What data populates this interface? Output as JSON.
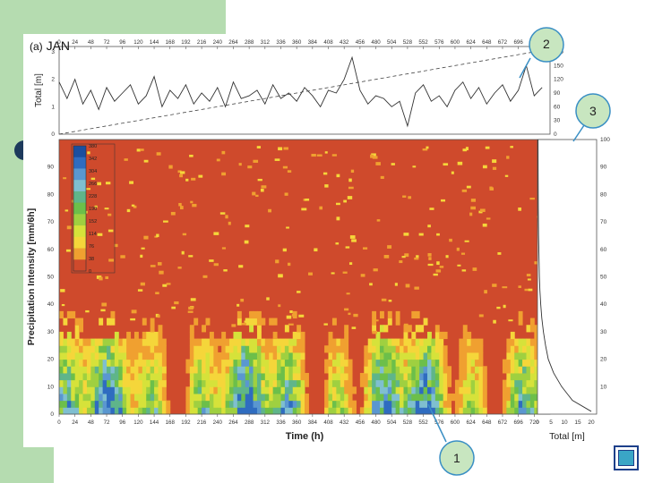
{
  "panel": {
    "label_letter": "(a)",
    "month": "JAN"
  },
  "callouts": [
    {
      "id": "1",
      "text": "1"
    },
    {
      "id": "2",
      "text": "2"
    },
    {
      "id": "3",
      "text": "3"
    }
  ],
  "colors": {
    "green_panel": "#b5dcb0",
    "callout_fill": "#c8e6c0",
    "callout_stroke": "#3a8fc4",
    "heat_background": "#cf4a2c"
  },
  "chart_data": [
    {
      "type": "line",
      "panel": "top",
      "ylabel": "Total [m]",
      "x_ticks": [
        "0",
        "24",
        "48",
        "72",
        "96",
        "120",
        "144",
        "168",
        "192",
        "216",
        "240",
        "264",
        "288",
        "312",
        "336",
        "360",
        "384",
        "408",
        "432",
        "456",
        "480",
        "504",
        "528",
        "552",
        "576",
        "600",
        "624",
        "648",
        "672",
        "696",
        "720"
      ],
      "xlim": [
        0,
        744
      ],
      "y_ticks_left": [
        "0",
        "1",
        "2",
        "3"
      ],
      "ylim_left": [
        0,
        3
      ],
      "y_ticks_right": [
        "0",
        "30",
        "60",
        "90",
        "120",
        "150",
        "180"
      ],
      "ylim_right": [
        0,
        180
      ],
      "series": [
        {
          "style": "solid",
          "x": [
            0,
            12,
            24,
            36,
            48,
            60,
            72,
            84,
            96,
            108,
            120,
            132,
            144,
            156,
            168,
            180,
            192,
            204,
            216,
            228,
            240,
            252,
            264,
            276,
            288,
            300,
            312,
            324,
            336,
            348,
            360,
            372,
            384,
            396,
            408,
            420,
            432,
            444,
            456,
            468,
            480,
            492,
            504,
            516,
            528,
            540,
            552,
            564,
            576,
            588,
            600,
            612,
            624,
            636,
            648,
            660,
            672,
            684,
            696,
            708,
            720,
            732
          ],
          "y": [
            1.9,
            1.3,
            2.0,
            1.1,
            1.6,
            0.9,
            1.7,
            1.2,
            1.5,
            1.8,
            1.1,
            1.4,
            2.1,
            1.0,
            1.6,
            1.3,
            1.8,
            1.1,
            1.5,
            1.2,
            1.7,
            1.0,
            1.9,
            1.3,
            1.4,
            1.6,
            1.1,
            1.8,
            1.3,
            1.5,
            1.2,
            1.7,
            1.4,
            1.0,
            1.6,
            1.5,
            2.0,
            2.8,
            1.6,
            1.1,
            1.4,
            1.3,
            1.0,
            1.2,
            0.3,
            1.5,
            1.8,
            1.2,
            1.4,
            1.0,
            1.6,
            1.9,
            1.3,
            1.7,
            1.1,
            1.5,
            1.8,
            1.2,
            1.6,
            2.5,
            1.4,
            1.7
          ]
        },
        {
          "style": "dashed",
          "x": [
            0,
            744
          ],
          "y": [
            0,
            186
          ]
        }
      ]
    },
    {
      "type": "heatmap",
      "panel": "main",
      "xlabel": "Time (h)",
      "ylabel": "Precipitation Intensity [mm/6h]",
      "x_ticks": [
        "0",
        "24",
        "48",
        "72",
        "96",
        "120",
        "144",
        "168",
        "192",
        "216",
        "240",
        "264",
        "288",
        "312",
        "336",
        "360",
        "384",
        "408",
        "432",
        "456",
        "480",
        "504",
        "528",
        "552",
        "576",
        "600",
        "624",
        "648",
        "672",
        "696",
        "720"
      ],
      "xlim": [
        0,
        744
      ],
      "y_ticks": [
        "0",
        "10",
        "20",
        "30",
        "40",
        "50",
        "60",
        "70",
        "80",
        "90"
      ],
      "ylim": [
        0,
        100
      ],
      "colorbar_ticks": [
        "380",
        "342",
        "304",
        "266",
        "228",
        "190",
        "152",
        "114",
        "76",
        "38",
        "0"
      ],
      "colorbar_colors": [
        "#1a4fa0",
        "#2f6cc0",
        "#5a97d0",
        "#7fbfd0",
        "#5fb58a",
        "#6cbf4a",
        "#9fd040",
        "#d6e23a",
        "#f5d63a",
        "#f0a030",
        "#cf4a2c"
      ]
    },
    {
      "type": "line",
      "panel": "right",
      "xlabel": "Total [m]",
      "x_ticks": [
        "0",
        "5",
        "10",
        "15",
        "20"
      ],
      "xlim": [
        0,
        22
      ],
      "y_ticks": [
        "10",
        "20",
        "30",
        "40",
        "50",
        "60",
        "70",
        "80",
        "90",
        "100"
      ],
      "ylim": [
        0,
        100
      ],
      "series": [
        {
          "style": "solid",
          "x": [
            20,
            13,
            9,
            6,
            4,
            3,
            2.2,
            1.6,
            1.2,
            0.9,
            0.7,
            0.6,
            0.5,
            0.4,
            0.35,
            0.3,
            0.25,
            0.2
          ],
          "y": [
            1,
            5,
            10,
            15,
            20,
            25,
            30,
            35,
            40,
            45,
            50,
            55,
            60,
            65,
            70,
            75,
            85,
            100
          ]
        }
      ]
    }
  ]
}
